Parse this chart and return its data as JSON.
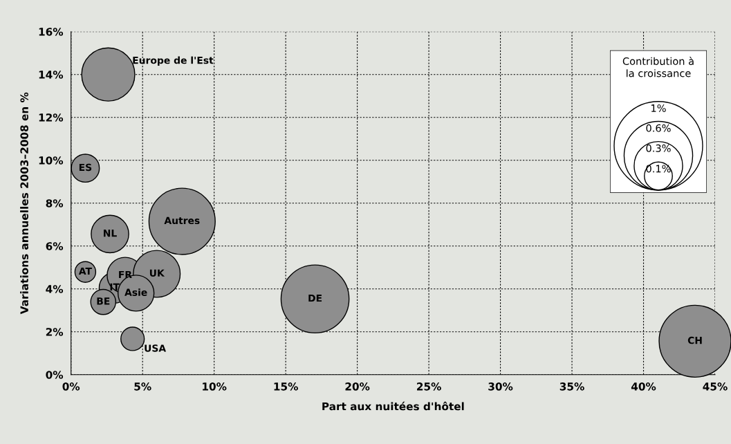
{
  "chart_data": {
    "type": "bubble",
    "xlabel": "Part aux nuitées d'hôtel",
    "ylabel": "Variations annuelles 2003–2008 en %",
    "legend_title": "Contribution à\nla croissance",
    "series": [
      {
        "color": "#8e8e8e",
        "x": [
          2.6,
          1.0,
          7.76,
          2.72,
          1.0,
          3.04,
          3.78,
          5.99,
          4.54,
          2.25,
          4.3,
          17.05,
          43.6
        ],
        "values": [
          14.0,
          9.63,
          7.15,
          6.56,
          4.79,
          4.05,
          4.63,
          4.7,
          3.8,
          3.39,
          1.67,
          3.53,
          1.56
        ],
        "sizes": [
          0.36,
          0.1,
          0.56,
          0.18,
          0.055,
          0.12,
          0.165,
          0.28,
          0.165,
          0.08,
          0.07,
          0.59,
          0.66
        ]
      }
    ],
    "size_legend": [
      {
        "value": 1,
        "label": "1%"
      },
      {
        "value": 0.6,
        "label": "0.6%"
      },
      {
        "value": 0.3,
        "label": "0.3%"
      },
      {
        "value": 0.1,
        "label": "0.1%"
      }
    ],
    "annotations": [
      {
        "text": "Europe de l'Est",
        "x": 2.6,
        "y": 14.0
      },
      {
        "text": "ES",
        "x": 1.0,
        "y": 9.63
      },
      {
        "text": "Autres",
        "x": 7.76,
        "y": 7.15
      },
      {
        "text": "NL",
        "x": 2.72,
        "y": 6.56
      },
      {
        "text": "AT",
        "x": 1.0,
        "y": 4.79
      },
      {
        "text": "IT",
        "x": 3.04,
        "y": 4.05
      },
      {
        "text": "FR",
        "x": 3.78,
        "y": 4.63
      },
      {
        "text": "UK",
        "x": 5.99,
        "y": 4.7
      },
      {
        "text": "Asie",
        "x": 4.54,
        "y": 3.8
      },
      {
        "text": "BE",
        "x": 2.25,
        "y": 3.39
      },
      {
        "text": "USA",
        "x": 4.3,
        "y": 1.67
      },
      {
        "text": "DE",
        "x": 17.05,
        "y": 3.53
      },
      {
        "text": "CH",
        "x": 43.6,
        "y": 1.56
      }
    ],
    "xlim": [
      0,
      45
    ],
    "xticks": [
      {
        "value": 0,
        "label": "0%"
      },
      {
        "value": 5,
        "label": "5%"
      },
      {
        "value": 10,
        "label": "10%"
      },
      {
        "value": 15,
        "label": "15%"
      },
      {
        "value": 20,
        "label": "20%"
      },
      {
        "value": 25,
        "label": "25%"
      },
      {
        "value": 30,
        "label": "30%"
      },
      {
        "value": 35,
        "label": "35%"
      },
      {
        "value": 40,
        "label": "40%"
      },
      {
        "value": 45,
        "label": "45%"
      }
    ],
    "ylim": [
      0,
      16
    ],
    "yticks": [
      {
        "value": 0,
        "label": "0%"
      },
      {
        "value": 2,
        "label": "2%"
      },
      {
        "value": 4,
        "label": "4%"
      },
      {
        "value": 6,
        "label": "6%"
      },
      {
        "value": 8,
        "label": "8%"
      },
      {
        "value": 10,
        "label": "10%"
      },
      {
        "value": 12,
        "label": "12%"
      },
      {
        "value": 14,
        "label": "14%"
      },
      {
        "value": 16,
        "label": "16%"
      }
    ],
    "grid": true
  }
}
